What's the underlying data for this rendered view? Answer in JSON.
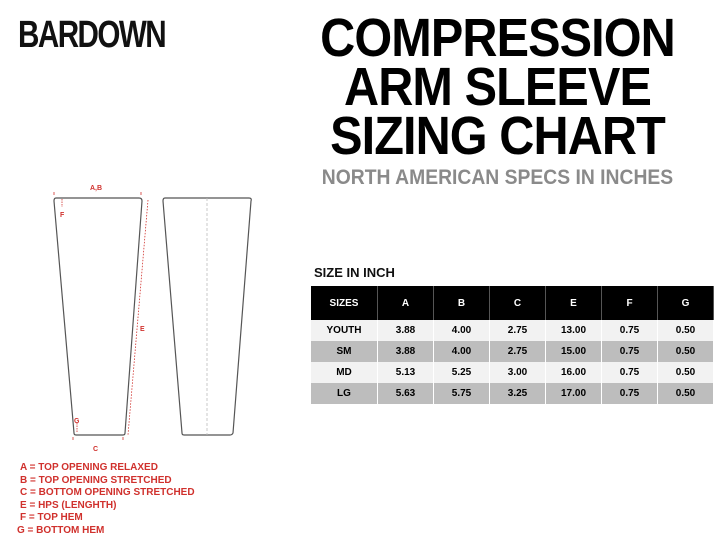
{
  "brand": "BARDOWN",
  "title_lines": [
    "COMPRESSION",
    "ARM SLEEVE",
    "SIZING CHART"
  ],
  "subtitle": "NORTH AMERICAN SPECS IN INCHES",
  "diagram_labels": {
    "ab": "A,B",
    "c": "C",
    "e": "E",
    "f": "F",
    "g": "G"
  },
  "colors": {
    "accent": "#d0312d",
    "header_bg": "#000000",
    "row_light": "#f2f2f2",
    "row_dark": "#bdbdbd",
    "subtitle": "#8a8a8a"
  },
  "table": {
    "title": "SIZE IN INCH",
    "headers": [
      "SIZES",
      "A",
      "B",
      "C",
      "E",
      "F",
      "G"
    ],
    "rows": [
      [
        "YOUTH",
        "3.88",
        "4.00",
        "2.75",
        "13.00",
        "0.75",
        "0.50"
      ],
      [
        "SM",
        "3.88",
        "4.00",
        "2.75",
        "15.00",
        "0.75",
        "0.50"
      ],
      [
        "MD",
        "5.13",
        "5.25",
        "3.00",
        "16.00",
        "0.75",
        "0.50"
      ],
      [
        "LG",
        "5.63",
        "5.75",
        "3.25",
        "17.00",
        "0.75",
        "0.50"
      ]
    ]
  },
  "legend": [
    {
      "key": "A",
      "text": " = TOP OPENING RELAXED"
    },
    {
      "key": "B",
      "text": " = TOP OPENING STRETCHED"
    },
    {
      "key": "C",
      "text": " = BOTTOM OPENING STRETCHED"
    },
    {
      "key": "E",
      "text": " = HPS (LENGHTH)"
    },
    {
      "key": "F",
      "text": " = TOP HEM"
    },
    {
      "key": "G",
      "text": " = BOTTOM HEM"
    }
  ]
}
